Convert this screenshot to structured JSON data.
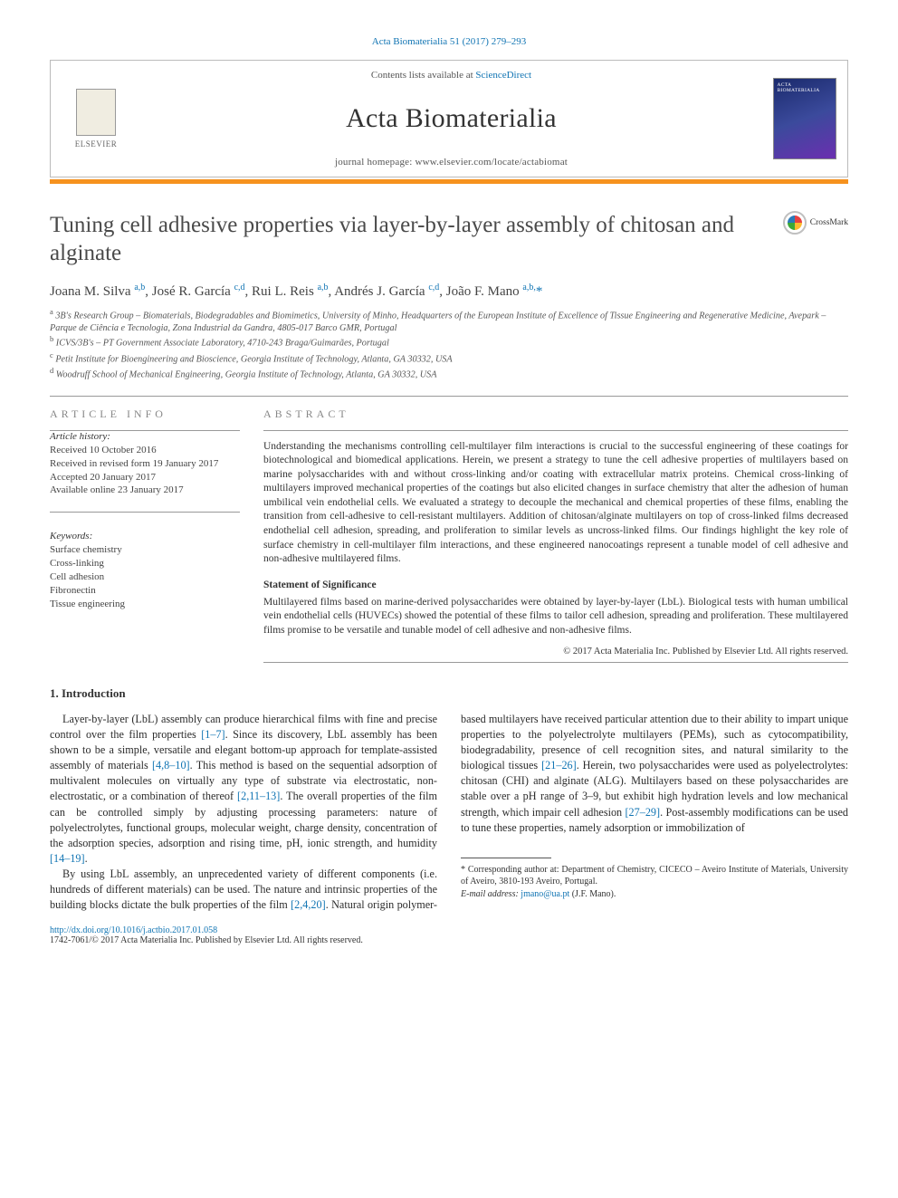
{
  "citation": {
    "text": "Acta Biomaterialia 51 (2017) 279–293",
    "href": "#"
  },
  "header": {
    "publisher_name": "ELSEVIER",
    "contents_line_pre": "Contents lists available at ",
    "contents_link": "ScienceDirect",
    "journal_name": "Acta Biomaterialia",
    "homepage_line": "journal homepage: www.elsevier.com/locate/actabiomat",
    "accent_color": "#f6921e"
  },
  "article": {
    "title": "Tuning cell adhesive properties via layer-by-layer assembly of chitosan and alginate",
    "crossmark_label": "CrossMark",
    "authors_html": "Joana M. Silva <sup>a,b</sup>, José R. García <sup>c,d</sup>, Rui L. Reis <sup>a,b</sup>, Andrés J. García <sup>c,d</sup>, João F. Mano <sup>a,b,</sup>",
    "corr_symbol": "*",
    "affiliations": [
      {
        "key": "a",
        "text": "3B's Research Group – Biomaterials, Biodegradables and Biomimetics, University of Minho, Headquarters of the European Institute of Excellence of Tissue Engineering and Regenerative Medicine, Avepark – Parque de Ciência e Tecnologia, Zona Industrial da Gandra, 4805-017 Barco GMR, Portugal"
      },
      {
        "key": "b",
        "text": "ICVS/3B's – PT Government Associate Laboratory, 4710-243 Braga/Guimarães, Portugal"
      },
      {
        "key": "c",
        "text": "Petit Institute for Bioengineering and Bioscience, Georgia Institute of Technology, Atlanta, GA 30332, USA"
      },
      {
        "key": "d",
        "text": "Woodruff School of Mechanical Engineering, Georgia Institute of Technology, Atlanta, GA 30332, USA"
      }
    ]
  },
  "info": {
    "label": "ARTICLE INFO",
    "history_head": "Article history:",
    "history": [
      "Received 10 October 2016",
      "Received in revised form 19 January 2017",
      "Accepted 20 January 2017",
      "Available online 23 January 2017"
    ],
    "keywords_head": "Keywords:",
    "keywords": [
      "Surface chemistry",
      "Cross-linking",
      "Cell adhesion",
      "Fibronectin",
      "Tissue engineering"
    ]
  },
  "abstract": {
    "label": "ABSTRACT",
    "body": "Understanding the mechanisms controlling cell-multilayer film interactions is crucial to the successful engineering of these coatings for biotechnological and biomedical applications. Herein, we present a strategy to tune the cell adhesive properties of multilayers based on marine polysaccharides with and without cross-linking and/or coating with extracellular matrix proteins. Chemical cross-linking of multilayers improved mechanical properties of the coatings but also elicited changes in surface chemistry that alter the adhesion of human umbilical vein endothelial cells. We evaluated a strategy to decouple the mechanical and chemical properties of these films, enabling the transition from cell-adhesive to cell-resistant multilayers. Addition of chitosan/alginate multilayers on top of cross-linked films decreased endothelial cell adhesion, spreading, and proliferation to similar levels as uncross-linked films. Our findings highlight the key role of surface chemistry in cell-multilayer film interactions, and these engineered nanocoatings represent a tunable model of cell adhesive and non-adhesive multilayered films.",
    "stmt_head": "Statement of Significance",
    "stmt_body": "Multilayered films based on marine-derived polysaccharides were obtained by layer-by-layer (LbL). Biological tests with human umbilical vein endothelial cells (HUVECs) showed the potential of these films to tailor cell adhesion, spreading and proliferation. These multilayered films promise to be versatile and tunable model of cell adhesive and non-adhesive films.",
    "copyright": "© 2017 Acta Materialia Inc. Published by Elsevier Ltd. All rights reserved."
  },
  "body": {
    "intro_title": "1. Introduction",
    "p1a": "Layer-by-layer (LbL) assembly can produce hierarchical films with fine and precise control over the film properties ",
    "ref1": "[1–7]",
    "p1b": ". Since its discovery, LbL assembly has been shown to be a simple, versatile and elegant bottom-up approach for template-assisted assembly of materials ",
    "ref2": "[4,8–10]",
    "p1c": ". This method is based on the sequential adsorption of multivalent molecules on virtually any type of substrate via electrostatic, non-electrostatic, or a combination of thereof ",
    "ref3": "[2,11–13]",
    "p1d": ". The overall properties of the film can be controlled simply by adjusting processing parameters: nature of polyelectrolytes, functional groups, molecular weight, charge density, concentration of the adsorption species, adsorption and rising time, pH, ionic strength, and humidity ",
    "ref4": "[14–19]",
    "p1e": ".",
    "p2a": "By using LbL assembly, an unprecedented variety of different components (i.e. hundreds of different materials) can be used. The nature and intrinsic properties of the building blocks dictate the bulk properties of the film ",
    "ref5": "[2,4,20]",
    "p2b": ". Natural origin polymer-based multilayers have received particular attention due to their ability to impart unique properties to the polyelectrolyte multilayers (PEMs), such as cytocompatibility, biodegradability, presence of cell recognition sites, and natural similarity to the biological tissues ",
    "ref6": "[21–26]",
    "p2c": ". Herein, two polysaccharides were used as polyelectrolytes: chitosan (CHI) and alginate (ALG). Multilayers based on these polysaccharides are stable over a pH range of 3–9, but exhibit high hydration levels and low mechanical strength, which impair cell adhesion ",
    "ref7": "[27–29]",
    "p2d": ". Post-assembly modifications can be used to tune these properties, namely adsorption or immobilization of"
  },
  "footnote": {
    "corr_label": "* Corresponding author at: Department of Chemistry, CICECO – Aveiro Institute of Materials, University of Aveiro, 3810-193 Aveiro, Portugal.",
    "email_label": "E-mail address:",
    "email": "jmano@ua.pt",
    "email_owner": "(J.F. Mano)."
  },
  "footer": {
    "doi": "http://dx.doi.org/10.1016/j.actbio.2017.01.058",
    "issn_line": "1742-7061/© 2017 Acta Materialia Inc. Published by Elsevier Ltd. All rights reserved."
  },
  "colors": {
    "link": "#1074b3",
    "accent": "#f6921e",
    "text": "#333333",
    "light_text": "#888888"
  }
}
